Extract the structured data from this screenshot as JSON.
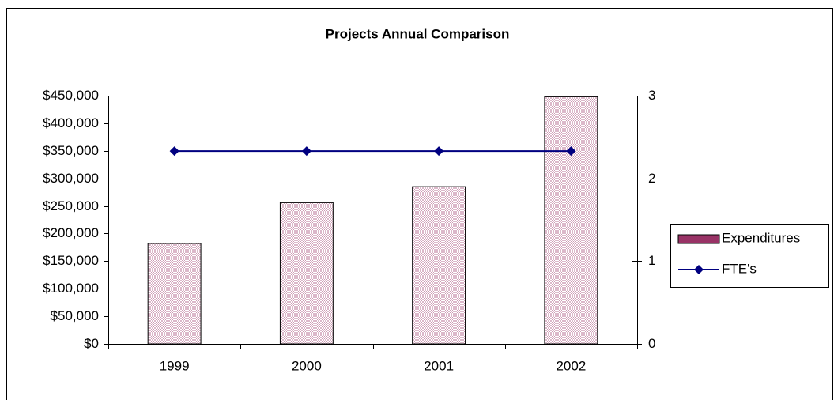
{
  "chart_data": {
    "type": "bar",
    "title": "Projects Annual Comparison",
    "categories": [
      "1999",
      "2000",
      "2001",
      "2002"
    ],
    "series": [
      {
        "name": "Expenditures",
        "type": "bar",
        "color": "#993366",
        "values": [
          182000,
          256000,
          285000,
          448000
        ]
      },
      {
        "name": "FTE's",
        "type": "line",
        "axis": "y2",
        "color": "#000080",
        "values": [
          2.33,
          2.33,
          2.33,
          2.33
        ]
      }
    ],
    "ylim": [
      0,
      450000
    ],
    "yticks": [
      {
        "value": 0,
        "label": "$0"
      },
      {
        "value": 50000,
        "label": "$50,000"
      },
      {
        "value": 100000,
        "label": "$100,000"
      },
      {
        "value": 150000,
        "label": "$150,000"
      },
      {
        "value": 200000,
        "label": "$200,000"
      },
      {
        "value": 250000,
        "label": "$250,000"
      },
      {
        "value": 300000,
        "label": "$300,000"
      },
      {
        "value": 350000,
        "label": "$350,000"
      },
      {
        "value": 400000,
        "label": "$400,000"
      },
      {
        "value": 450000,
        "label": "$450,000"
      }
    ],
    "y2lim": [
      0,
      3
    ],
    "y2ticks": [
      0,
      1,
      2,
      3
    ],
    "legend": "right"
  }
}
